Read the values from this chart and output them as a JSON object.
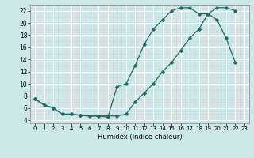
{
  "title": "",
  "xlabel": "Humidex (Indice chaleur)",
  "ylabel": "",
  "xlim": [
    -0.5,
    23.5
  ],
  "ylim": [
    3.5,
    23.0
  ],
  "yticks": [
    4,
    6,
    8,
    10,
    12,
    14,
    16,
    18,
    20,
    22
  ],
  "xticks": [
    0,
    1,
    2,
    3,
    4,
    5,
    6,
    7,
    8,
    9,
    10,
    11,
    12,
    13,
    14,
    15,
    16,
    17,
    18,
    19,
    20,
    21,
    22,
    23
  ],
  "bg_color": "#cde8e8",
  "line_color": "#1a6b6b",
  "grid_major_color": "#ffffff",
  "grid_minor_color": "#f5c8c8",
  "line1_x": [
    0,
    1,
    2,
    3,
    4,
    5,
    6,
    7,
    8,
    9,
    10,
    11,
    12,
    13,
    14,
    15,
    16,
    17,
    18,
    19,
    20,
    21,
    22
  ],
  "line1_y": [
    7.5,
    6.5,
    6.0,
    5.0,
    5.0,
    4.8,
    4.7,
    4.7,
    4.5,
    9.5,
    10.0,
    13.0,
    16.5,
    19.0,
    20.5,
    22.0,
    22.5,
    22.5,
    21.5,
    21.5,
    20.5,
    17.5,
    13.5
  ],
  "line2_x": [
    0,
    1,
    2,
    3,
    4,
    5,
    6,
    7,
    8,
    9,
    10,
    11,
    12,
    13,
    14,
    15,
    16,
    17,
    18,
    19,
    20,
    21,
    22
  ],
  "line2_y": [
    7.5,
    6.5,
    6.0,
    5.0,
    5.0,
    4.8,
    4.7,
    4.7,
    4.7,
    4.7,
    5.0,
    7.0,
    8.5,
    10.0,
    12.0,
    13.5,
    15.5,
    17.5,
    19.0,
    21.5,
    22.5,
    22.5,
    22.0
  ]
}
